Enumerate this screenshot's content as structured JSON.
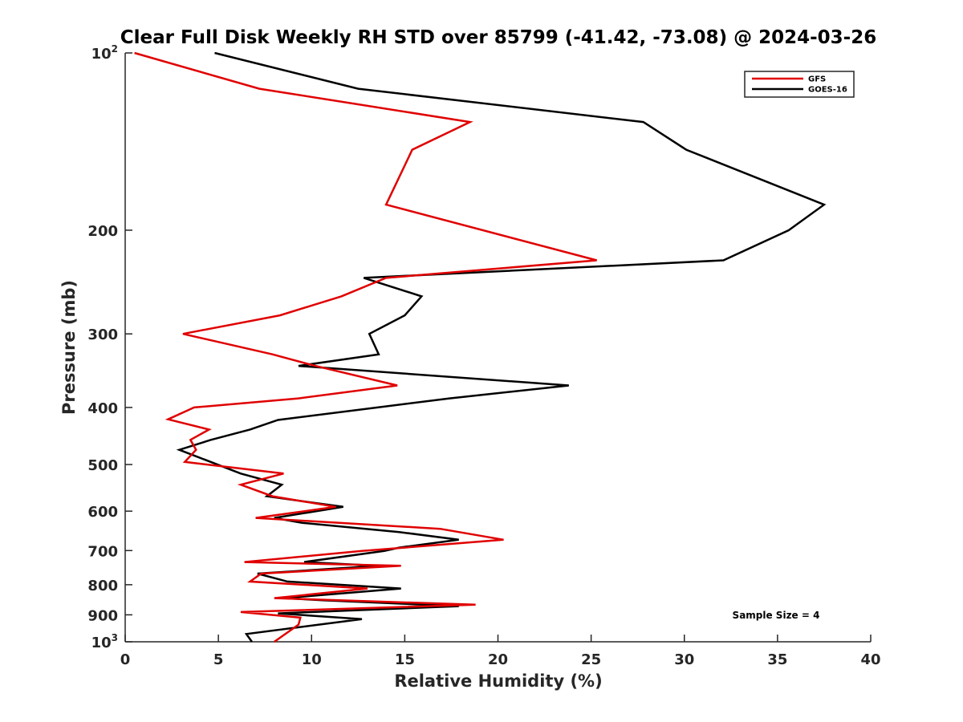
{
  "chart_data": {
    "type": "line",
    "title": "Clear Full Disk Weekly RH STD over 85799 (-41.42, -73.08) @ 2024-03-26",
    "xlabel": "Relative Humidity (%)",
    "ylabel": "Pressure (mb)",
    "xlim": [
      0,
      40
    ],
    "ylim": [
      100,
      1000
    ],
    "y_scale": "log",
    "y_reversed": true,
    "grid": false,
    "legend_position": "top-right",
    "xticks": [
      "0",
      "5",
      "10",
      "15",
      "20",
      "25",
      "30",
      "35",
      "40"
    ],
    "yticks": [
      {
        "base": "10",
        "exp": "2",
        "value": 100
      },
      {
        "base": "200",
        "exp": "",
        "value": 200
      },
      {
        "base": "300",
        "exp": "",
        "value": 300
      },
      {
        "base": "400",
        "exp": "",
        "value": 400
      },
      {
        "base": "500",
        "exp": "",
        "value": 500
      },
      {
        "base": "600",
        "exp": "",
        "value": 600
      },
      {
        "base": "700",
        "exp": "",
        "value": 700
      },
      {
        "base": "800",
        "exp": "",
        "value": 800
      },
      {
        "base": "900",
        "exp": "",
        "value": 900
      },
      {
        "base": "10",
        "exp": "3",
        "value": 1000
      }
    ],
    "series": [
      {
        "name": "GFS",
        "color": "#e00000",
        "points": [
          [
            0.5,
            100
          ],
          [
            7.2,
            115
          ],
          [
            18.5,
            131
          ],
          [
            15.4,
            146
          ],
          [
            14.0,
            181
          ],
          [
            25.3,
            225
          ],
          [
            14.0,
            241
          ],
          [
            11.6,
            259
          ],
          [
            8.3,
            279
          ],
          [
            3.1,
            300
          ],
          [
            7.9,
            325
          ],
          [
            10.2,
            340
          ],
          [
            14.6,
            367
          ],
          [
            9.3,
            386
          ],
          [
            3.7,
            400
          ],
          [
            2.3,
            419
          ],
          [
            4.5,
            436
          ],
          [
            3.5,
            454
          ],
          [
            3.8,
            472
          ],
          [
            3.2,
            495
          ],
          [
            8.5,
            518
          ],
          [
            6.2,
            541
          ],
          [
            7.9,
            566
          ],
          [
            11.3,
            590
          ],
          [
            7.0,
            616
          ],
          [
            16.9,
            643
          ],
          [
            20.3,
            671
          ],
          [
            12.7,
            701
          ],
          [
            6.4,
            732
          ],
          [
            14.8,
            743
          ],
          [
            7.3,
            766
          ],
          [
            6.7,
            790
          ],
          [
            13.0,
            812
          ],
          [
            8.0,
            843
          ],
          [
            18.8,
            865
          ],
          [
            6.2,
            890
          ],
          [
            9.4,
            910
          ],
          [
            9.3,
            935
          ],
          [
            8.0,
            1000
          ]
        ]
      },
      {
        "name": "GOES-16",
        "color": "#000000",
        "points": [
          [
            4.8,
            100
          ],
          [
            12.5,
            115
          ],
          [
            27.8,
            131
          ],
          [
            30.1,
            146
          ],
          [
            37.5,
            181
          ],
          [
            35.6,
            200
          ],
          [
            32.1,
            225
          ],
          [
            12.8,
            241
          ],
          [
            15.9,
            259
          ],
          [
            15.0,
            279
          ],
          [
            13.1,
            300
          ],
          [
            13.6,
            325
          ],
          [
            9.3,
            340
          ],
          [
            23.8,
            367
          ],
          [
            17.4,
            386
          ],
          [
            8.2,
            420
          ],
          [
            6.7,
            436
          ],
          [
            4.6,
            454
          ],
          [
            2.9,
            472
          ],
          [
            6.2,
            518
          ],
          [
            8.4,
            541
          ],
          [
            7.6,
            566
          ],
          [
            11.7,
            590
          ],
          [
            8.0,
            616
          ],
          [
            9.5,
            628
          ],
          [
            14.7,
            651
          ],
          [
            17.9,
            671
          ],
          [
            14.7,
            692
          ],
          [
            13.9,
            701
          ],
          [
            9.6,
            732
          ],
          [
            13.6,
            743
          ],
          [
            7.1,
            766
          ],
          [
            8.7,
            790
          ],
          [
            14.8,
            812
          ],
          [
            8.5,
            843
          ],
          [
            10.6,
            850
          ],
          [
            17.9,
            870
          ],
          [
            8.2,
            895
          ],
          [
            12.7,
            915
          ],
          [
            6.5,
            970
          ],
          [
            6.8,
            1000
          ]
        ]
      }
    ],
    "annotations": [
      "Sample Size = 4"
    ]
  }
}
